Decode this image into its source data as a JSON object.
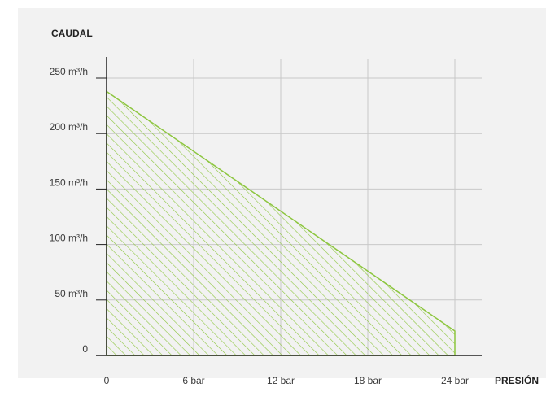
{
  "chart_data": {
    "type": "area",
    "xlabel": "PRESIÓN",
    "ylabel": "CAUDAL",
    "x_categories": [
      "0",
      "6 bar",
      "12 bar",
      "18 bar",
      "24 bar"
    ],
    "x_values": [
      0,
      6,
      12,
      18,
      24
    ],
    "y_tick_labels": [
      "0",
      "50 m³/h",
      "100 m³/h",
      "150 m³/h",
      "200 m³/h",
      "250 m³/h"
    ],
    "y_tick_values": [
      0,
      50,
      100,
      150,
      200,
      250
    ],
    "xlim": [
      0,
      24
    ],
    "ylim": [
      0,
      250
    ],
    "grid": true,
    "series": [
      {
        "x": [
          0,
          24
        ],
        "y": [
          238,
          22
        ]
      }
    ],
    "colors": {
      "fill_hatch": "#8dc63f",
      "outline": "#8dc63f",
      "grid": "#c8c8c8",
      "axis": "#222222",
      "background": "#f2f2f2"
    }
  }
}
